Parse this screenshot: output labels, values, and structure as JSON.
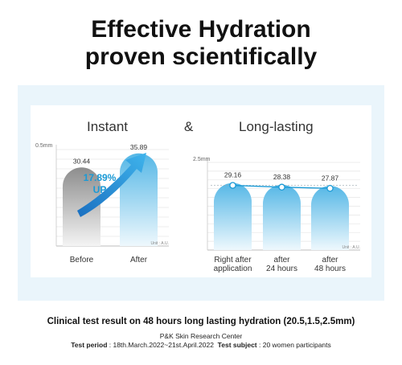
{
  "headline": {
    "line1": "Effective Hydration",
    "line2": "proven scientifically"
  },
  "section_labels": {
    "left": "Instant",
    "amp": "&",
    "right": "Long-lasting"
  },
  "chart_data": [
    {
      "type": "bar",
      "title": "Instant",
      "categories": [
        "Before",
        "After"
      ],
      "values": [
        30.44,
        35.89
      ],
      "ytick_label": "0.5mm",
      "unit_label": "Unit : A.U.",
      "annotation": {
        "percent": "17.89%",
        "word": "UP"
      },
      "colors": [
        "#9e9e9e",
        "#5bbbe8"
      ]
    },
    {
      "type": "bar",
      "title": "Long-lasting",
      "categories": [
        "Right after\napplication",
        "after\n24 hours",
        "after\n48 hours"
      ],
      "category_lines": [
        [
          "Right after",
          "application"
        ],
        [
          "after",
          "24 hours"
        ],
        [
          "after",
          "48 hours"
        ]
      ],
      "values": [
        29.16,
        28.38,
        27.87
      ],
      "ytick_label": "2.5mm",
      "unit_label": "Unit : A.U.",
      "colors": [
        "#5bbbe8",
        "#5bbbe8",
        "#5bbbe8"
      ],
      "line_overlay": true
    }
  ],
  "footer": {
    "main": "Clinical test result on 48 hours long lasting hydration (20.5,1.5,2.5mm)",
    "center": "P&K Skin Research Center",
    "period_label": "Test period",
    "period_value": " : 18th.March.2022~21st.April.2022",
    "subject_label": "Test subject",
    "subject_value": " : 20 women participants"
  },
  "colors": {
    "panel_bg": "#eaf5fb",
    "accent_blue": "#1a9ad6",
    "bar_blue": "#5bbbe8",
    "bar_gray": "#9e9e9e"
  }
}
